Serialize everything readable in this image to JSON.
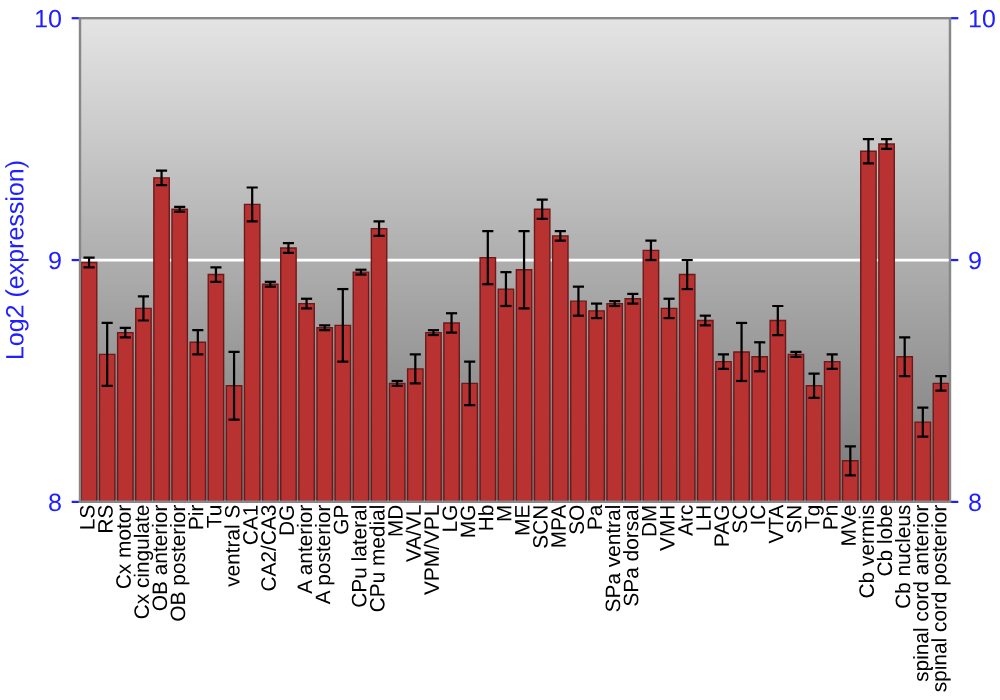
{
  "chart_data": {
    "type": "bar",
    "ylabel": "Log2 (expression)",
    "categories": [
      "LS",
      "RS",
      "Cx motor",
      "Cx cingulate",
      "OB anterior",
      "OB posterior",
      "Pir",
      "Tu",
      "ventral S",
      "CA1",
      "CA2/CA3",
      "DG",
      "A anterior",
      "A posterior",
      "GP",
      "CPu lateral",
      "CPu medial",
      "MD",
      "VA/VL",
      "VPM/VPL",
      "LG",
      "MG",
      "Hb",
      "M",
      "ME",
      "SCN",
      "MPA",
      "SO",
      "Pa",
      "SPa ventral",
      "SPa dorsal",
      "DM",
      "VMH",
      "Arc",
      "LH",
      "PAG",
      "SC",
      "IC",
      "VTA",
      "SN",
      "Tg",
      "Pn",
      "MVe",
      "Cb vermis",
      "Cb lobe",
      "Cb nucleus",
      "spinal cord anterior",
      "spinal cord posterior"
    ],
    "series": [
      {
        "color": "#b83232",
        "values": [
          8.99,
          8.61,
          8.7,
          8.8,
          9.34,
          9.21,
          8.66,
          8.94,
          8.48,
          9.23,
          8.9,
          9.05,
          8.82,
          8.72,
          8.73,
          8.95,
          9.13,
          8.49,
          8.55,
          8.7,
          8.74,
          8.49,
          9.01,
          8.88,
          8.96,
          9.21,
          9.1,
          8.83,
          8.79,
          8.82,
          8.84,
          9.04,
          8.8,
          8.94,
          8.75,
          8.58,
          8.62,
          8.6,
          8.75,
          8.61,
          8.48,
          8.58,
          8.17,
          9.45,
          9.48,
          8.6,
          8.33,
          8.49
        ],
        "errors": [
          0.02,
          0.13,
          0.02,
          0.05,
          0.03,
          0.01,
          0.05,
          0.03,
          0.14,
          0.07,
          0.01,
          0.02,
          0.02,
          0.01,
          0.15,
          0.01,
          0.03,
          0.01,
          0.06,
          0.01,
          0.04,
          0.09,
          0.11,
          0.07,
          0.16,
          0.04,
          0.02,
          0.06,
          0.03,
          0.01,
          0.02,
          0.04,
          0.04,
          0.06,
          0.02,
          0.03,
          0.12,
          0.06,
          0.06,
          0.01,
          0.05,
          0.03,
          0.06,
          0.05,
          0.02,
          0.08,
          0.06,
          0.03
        ]
      }
    ],
    "ylim": [
      8,
      10
    ],
    "yticks": [
      8,
      9,
      10
    ],
    "y2lim": [
      8,
      10
    ],
    "y2ticks": [
      8,
      9,
      10
    ],
    "grid": "y",
    "legend": false
  }
}
